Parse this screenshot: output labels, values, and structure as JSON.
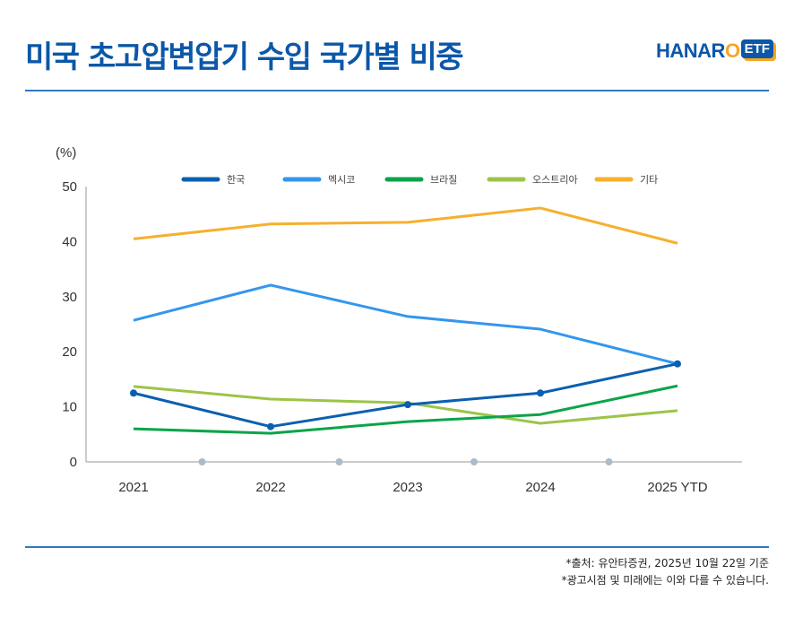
{
  "header": {
    "title": "미국 초고압변압기 수입 국가별 비중",
    "logo_text": "HANARO",
    "logo_badge": "ETF"
  },
  "footer": {
    "source": "*출처: 유안타증권, 2025년 10월 22일 기준",
    "disclaimer": "*광고시점 및 미래에는 이와 다를 수 있습니다."
  },
  "chart_data": {
    "type": "line",
    "ylabel": "(%)",
    "ylim": [
      0,
      50
    ],
    "yticks": [
      0,
      10,
      20,
      30,
      40,
      50
    ],
    "categories": [
      "2021",
      "2022",
      "2023",
      "2024",
      "2025 YTD"
    ],
    "legend_position": "top",
    "grid": false,
    "series": [
      {
        "name": "한국",
        "color": "#0b5fb0",
        "markers": true,
        "values": [
          12.5,
          6.4,
          10.4,
          12.5,
          17.8
        ]
      },
      {
        "name": "멕시코",
        "color": "#3396ee",
        "markers": false,
        "values": [
          25.7,
          32.1,
          26.4,
          24.1,
          17.8
        ]
      },
      {
        "name": "브라질",
        "color": "#0aa548",
        "markers": false,
        "values": [
          6.0,
          5.2,
          7.3,
          8.6,
          13.8
        ]
      },
      {
        "name": "오스트리아",
        "color": "#9cc448",
        "markers": false,
        "values": [
          13.7,
          11.4,
          10.7,
          7.0,
          9.3
        ]
      },
      {
        "name": "기타",
        "color": "#f6b02d",
        "markers": false,
        "values": [
          40.5,
          43.2,
          43.5,
          46.1,
          39.7
        ]
      }
    ]
  }
}
